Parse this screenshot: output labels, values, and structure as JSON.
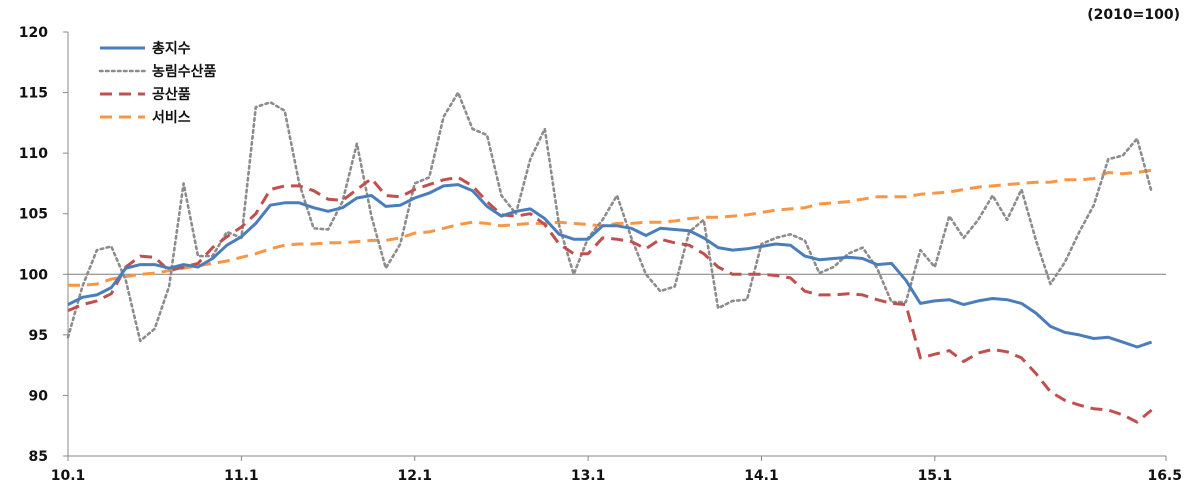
{
  "chart_data": {
    "type": "line",
    "title": "",
    "xlabel": "",
    "ylabel": "",
    "unit_label": "(2010=100)",
    "ylim": [
      85,
      120
    ],
    "yticks": [
      85,
      90,
      95,
      100,
      105,
      110,
      115,
      120
    ],
    "ytick_labels": [
      "85",
      "90",
      "95",
      "100",
      "105",
      "110",
      "115",
      "120"
    ],
    "xlim": [
      1,
      77
    ],
    "xticks": [
      1,
      13,
      25,
      37,
      49,
      61,
      77
    ],
    "xtick_labels": [
      "10.1",
      "11.1",
      "12.1",
      "13.1",
      "14.1",
      "15.1",
      "16.5"
    ],
    "grid": false,
    "reference_line": 100,
    "legend_position": "top-left",
    "series": [
      {
        "name": "총지수",
        "color": "#4a7ebb",
        "style": "solid",
        "values": [
          97.5,
          98.1,
          98.3,
          98.9,
          100.5,
          100.8,
          100.8,
          100.5,
          100.8,
          100.6,
          101.3,
          102.4,
          103.1,
          104.2,
          105.7,
          105.9,
          105.9,
          105.5,
          105.2,
          105.5,
          106.3,
          106.5,
          105.6,
          105.7,
          106.3,
          106.7,
          107.3,
          107.4,
          106.9,
          105.6,
          104.8,
          105.2,
          105.4,
          104.6,
          103.3,
          102.9,
          102.9,
          104.0,
          104.0,
          103.8,
          103.2,
          103.8,
          103.7,
          103.6,
          103.0,
          102.2,
          102.0,
          102.1,
          102.3,
          102.5,
          102.4,
          101.5,
          101.2,
          101.3,
          101.4,
          101.3,
          100.8,
          100.9,
          99.5,
          97.6,
          97.8,
          97.9,
          97.5,
          97.8,
          98.0,
          97.9,
          97.6,
          96.8,
          95.7,
          95.2,
          95.0,
          94.7,
          94.8,
          94.4,
          94.0,
          94.4
        ]
      },
      {
        "name": "농림수산품",
        "color": "#8c8c8c",
        "style": "dotted",
        "values": [
          94.8,
          99.0,
          102.0,
          102.3,
          99.5,
          94.5,
          95.5,
          99.0,
          107.5,
          101.5,
          101.5,
          103.5,
          103.0,
          113.8,
          114.2,
          113.5,
          107.5,
          103.8,
          103.7,
          106.0,
          110.8,
          104.8,
          100.5,
          102.5,
          107.5,
          108.0,
          113.0,
          115.0,
          112.0,
          111.5,
          106.5,
          105.0,
          109.5,
          112.0,
          104.0,
          100.0,
          103.0,
          104.5,
          106.5,
          103.0,
          100.0,
          98.6,
          99.0,
          103.5,
          104.5,
          97.2,
          97.8,
          97.9,
          102.5,
          103.0,
          103.3,
          102.8,
          100.1,
          100.6,
          101.7,
          102.2,
          100.5,
          97.7,
          97.7,
          102.0,
          100.6,
          104.8,
          103.0,
          104.5,
          106.5,
          104.5,
          107.0,
          102.8,
          99.2,
          101.0,
          103.5,
          105.7,
          109.5,
          109.8,
          111.2,
          106.8
        ]
      },
      {
        "name": "공산품",
        "color": "#c0504d",
        "style": "dashed",
        "values": [
          97.0,
          97.5,
          97.8,
          98.4,
          100.6,
          101.5,
          101.4,
          100.3,
          100.6,
          100.9,
          102.2,
          103.1,
          103.9,
          105.0,
          107.0,
          107.3,
          107.3,
          106.9,
          106.2,
          106.1,
          107.0,
          107.9,
          106.5,
          106.4,
          107.0,
          107.4,
          107.8,
          108.0,
          107.3,
          106.0,
          104.9,
          104.8,
          105.0,
          104.1,
          102.5,
          101.7,
          101.7,
          103.0,
          102.9,
          102.7,
          102.1,
          102.9,
          102.6,
          102.4,
          101.7,
          100.6,
          100.0,
          100.0,
          100.0,
          99.9,
          99.7,
          98.6,
          98.3,
          98.3,
          98.4,
          98.3,
          97.9,
          97.6,
          97.5,
          93.1,
          93.4,
          93.7,
          92.8,
          93.5,
          93.8,
          93.6,
          93.1,
          91.8,
          90.3,
          89.6,
          89.2,
          88.9,
          88.8,
          88.4,
          87.8,
          88.8
        ]
      },
      {
        "name": "서비스",
        "color": "#f79646",
        "style": "dashed",
        "values": [
          99.1,
          99.1,
          99.2,
          99.6,
          99.8,
          100.0,
          100.1,
          100.3,
          100.5,
          100.7,
          100.9,
          101.1,
          101.4,
          101.7,
          102.1,
          102.4,
          102.5,
          102.5,
          102.6,
          102.6,
          102.7,
          102.8,
          102.8,
          103.0,
          103.4,
          103.5,
          103.8,
          104.1,
          104.3,
          104.2,
          104.0,
          104.1,
          104.2,
          104.2,
          104.3,
          104.2,
          104.1,
          104.0,
          104.2,
          104.2,
          104.3,
          104.3,
          104.4,
          104.6,
          104.7,
          104.7,
          104.8,
          104.9,
          105.1,
          105.3,
          105.4,
          105.5,
          105.8,
          105.9,
          106.0,
          106.2,
          106.4,
          106.4,
          106.4,
          106.6,
          106.7,
          106.8,
          107.0,
          107.2,
          107.3,
          107.4,
          107.5,
          107.6,
          107.6,
          107.8,
          107.8,
          107.9,
          108.4,
          108.3,
          108.4,
          108.6
        ]
      }
    ]
  }
}
